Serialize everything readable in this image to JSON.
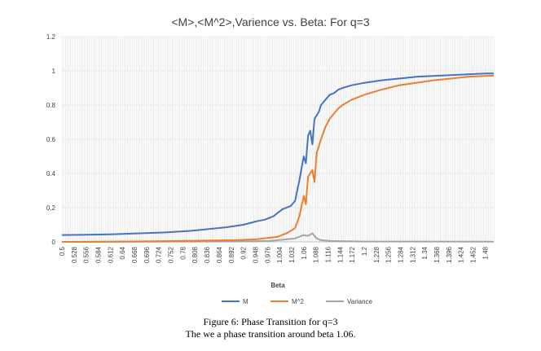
{
  "chart_data": {
    "type": "line",
    "title": "<M>,<M^2>,Varience vs. Beta: For q=3",
    "xlabel": "Beta",
    "ylabel": "",
    "ylim": [
      0,
      1.2
    ],
    "yticks": [
      "0",
      "0.2",
      "0.4",
      "0.6",
      "0.8",
      "1",
      "1.2"
    ],
    "xlim": [
      0.5,
      1.5
    ],
    "xtick_start": 0.5,
    "xtick_step": 0.028,
    "xtick_count": 36,
    "grid": true,
    "legend": "bottom",
    "series": [
      {
        "name": "M",
        "color": "#4472C4",
        "x": [
          0.5,
          0.56,
          0.62,
          0.68,
          0.74,
          0.8,
          0.84,
          0.88,
          0.92,
          0.95,
          0.97,
          0.99,
          1.0,
          1.01,
          1.02,
          1.03,
          1.04,
          1.045,
          1.05,
          1.055,
          1.06,
          1.065,
          1.07,
          1.075,
          1.08,
          1.085,
          1.09,
          1.095,
          1.1,
          1.11,
          1.12,
          1.13,
          1.14,
          1.15,
          1.17,
          1.2,
          1.24,
          1.28,
          1.32,
          1.36,
          1.4,
          1.44,
          1.48,
          1.5
        ],
        "values": [
          0.04,
          0.042,
          0.045,
          0.05,
          0.055,
          0.065,
          0.075,
          0.085,
          0.1,
          0.12,
          0.13,
          0.15,
          0.17,
          0.19,
          0.2,
          0.21,
          0.24,
          0.3,
          0.36,
          0.43,
          0.5,
          0.46,
          0.62,
          0.65,
          0.57,
          0.72,
          0.74,
          0.76,
          0.8,
          0.83,
          0.86,
          0.87,
          0.89,
          0.9,
          0.915,
          0.93,
          0.945,
          0.955,
          0.965,
          0.97,
          0.975,
          0.98,
          0.985,
          0.985
        ]
      },
      {
        "name": "M^2",
        "color": "#ED7D31",
        "x": [
          0.5,
          0.7,
          0.9,
          0.95,
          1.0,
          1.02,
          1.04,
          1.05,
          1.06,
          1.065,
          1.07,
          1.08,
          1.085,
          1.09,
          1.1,
          1.11,
          1.12,
          1.13,
          1.14,
          1.15,
          1.17,
          1.2,
          1.24,
          1.28,
          1.32,
          1.36,
          1.4,
          1.44,
          1.48,
          1.5
        ],
        "values": [
          0.0,
          0.003,
          0.01,
          0.015,
          0.03,
          0.05,
          0.08,
          0.15,
          0.27,
          0.22,
          0.38,
          0.42,
          0.35,
          0.52,
          0.6,
          0.67,
          0.72,
          0.75,
          0.78,
          0.8,
          0.83,
          0.86,
          0.89,
          0.915,
          0.93,
          0.945,
          0.955,
          0.965,
          0.97,
          0.972
        ]
      },
      {
        "name": "Variance",
        "color": "#A5A5A5",
        "x": [
          0.5,
          0.9,
          0.98,
          1.0,
          1.02,
          1.04,
          1.05,
          1.06,
          1.07,
          1.08,
          1.09,
          1.1,
          1.12,
          1.2,
          1.5
        ],
        "values": [
          0.0,
          0.002,
          0.005,
          0.01,
          0.015,
          0.02,
          0.03,
          0.04,
          0.035,
          0.05,
          0.02,
          0.01,
          0.005,
          0.002,
          0.001
        ]
      }
    ]
  },
  "caption": {
    "line1": "Figure 6: Phase Transition for q=3",
    "line2": "The we a phase transition around beta 1.06."
  }
}
